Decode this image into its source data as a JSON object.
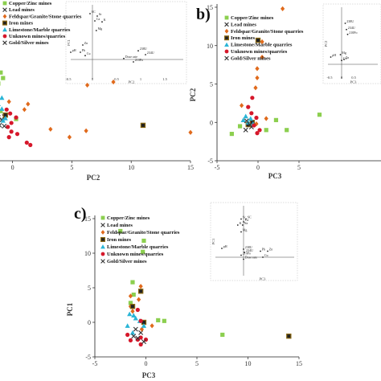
{
  "colors": {
    "copper_zinc": "#8ccf4f",
    "lead": "#333333",
    "feldspar": "#e06a1c",
    "iron": "#8b6914",
    "limestone": "#2ab5d6",
    "unknown": "#d6182b",
    "gold_silver": "#333333",
    "axis": "#222222"
  },
  "chart_data": [
    {
      "type": "scatter",
      "panel_label": "",
      "xlabel": "PC2",
      "ylabel": "",
      "xlim": [
        -1.6,
        15
      ],
      "ylim": [
        -5,
        15
      ],
      "xticks": [
        0,
        5,
        10,
        15
      ],
      "yticks": [],
      "legend_position": "top-left",
      "series": [
        {
          "name": "Copper/Zinc mines",
          "marker": "square",
          "color": "#8ccf4f",
          "points": [
            [
              -1.5,
              7.5
            ],
            [
              -1.3,
              6.8
            ],
            [
              -1.0,
              6.2
            ],
            [
              -0.8,
              5.5
            ],
            [
              -1.2,
              4.8
            ],
            [
              -1.4,
              2.2
            ],
            [
              -1.0,
              1.3
            ],
            [
              0.3,
              0.3
            ]
          ]
        },
        {
          "name": "Lead mines",
          "marker": "x",
          "color": "#333333",
          "points": [
            [
              -1.2,
              0.5
            ],
            [
              -0.9,
              0.2
            ],
            [
              -0.7,
              0.6
            ]
          ]
        },
        {
          "name": "Feldspar/Granite/Stone quarries",
          "marker": "diamond",
          "color": "#e06a1c",
          "points": [
            [
              6.3,
              4.6
            ],
            [
              8.5,
              5.0
            ],
            [
              1.0,
              1.5
            ],
            [
              1.3,
              2.2
            ],
            [
              3.2,
              -1.0
            ],
            [
              6.2,
              -1.2
            ],
            [
              15.0,
              -1.4
            ],
            [
              4.8,
              -2.0
            ],
            [
              -0.3,
              2.5
            ]
          ]
        },
        {
          "name": "Iron mines",
          "marker": "square-outline",
          "color": "#8b6914",
          "points": [
            [
              11.0,
              -0.5
            ],
            [
              -0.6,
              0.8
            ],
            [
              -1.3,
              -0.8
            ]
          ]
        },
        {
          "name": "Limestone/Marble quarries",
          "marker": "triangle",
          "color": "#2ab5d6",
          "points": [
            [
              -1.4,
              3.5
            ],
            [
              -0.9,
              3.0
            ],
            [
              -1.2,
              2.2
            ],
            [
              -0.9,
              1.6
            ],
            [
              -1.3,
              1.0
            ],
            [
              -0.6,
              0.4
            ],
            [
              -1.2,
              -0.2
            ],
            [
              -0.8,
              0.1
            ],
            [
              -1.4,
              -1.0
            ]
          ]
        },
        {
          "name": "Unknown mines/quarries",
          "marker": "circle",
          "color": "#d6182b",
          "points": [
            [
              -0.5,
              1.5
            ],
            [
              -0.2,
              1.0
            ],
            [
              0.3,
              0.5
            ],
            [
              -0.1,
              -0.2
            ],
            [
              -0.4,
              -0.7
            ],
            [
              -0.1,
              -1.3
            ],
            [
              0.4,
              -1.6
            ],
            [
              1.2,
              -2.7
            ],
            [
              1.5,
              -3.0
            ],
            [
              -0.3,
              -2.0
            ]
          ]
        },
        {
          "name": "Gold/Silver mines",
          "marker": "x",
          "color": "#333333",
          "points": [
            [
              -1.1,
              -0.5
            ],
            [
              -0.7,
              -0.6
            ]
          ]
        }
      ],
      "inset": {
        "xlabel": "PC2",
        "ylabel": "PC1",
        "xticks": [
          "-0.5",
          "0",
          "0.5",
          "1",
          "1.5"
        ],
        "points": [
          {
            "label": "SC",
            "x": -0.05,
            "y": 0.95
          },
          {
            "label": "Sr",
            "x": 0.1,
            "y": 0.9
          },
          {
            "label": "Ca",
            "x": 0.05,
            "y": 0.8
          },
          {
            "label": "K",
            "x": 0.2,
            "y": 0.78
          },
          {
            "label": "Mg",
            "x": 0.08,
            "y": 0.6
          },
          {
            "label": "Zn",
            "x": -0.2,
            "y": 0.3
          },
          {
            "label": "Pb",
            "x": -0.25,
            "y": 0.15
          },
          {
            "label": "pH",
            "x": -0.45,
            "y": 0.15
          },
          {
            "label": "Cu",
            "x": -0.15,
            "y": 0.08
          },
          {
            "label": "238U",
            "x": 0.95,
            "y": 0.18
          },
          {
            "label": "234U",
            "x": 1.1,
            "y": 0.1
          },
          {
            "label": "Dose rate",
            "x": 0.65,
            "y": 0.02
          },
          {
            "label": "210Po",
            "x": 0.85,
            "y": -0.05
          }
        ]
      }
    },
    {
      "type": "scatter",
      "panel_label": "b)",
      "xlabel": "PC3",
      "ylabel": "PC2",
      "xlim": [
        -5,
        15
      ],
      "ylim": [
        -5,
        15
      ],
      "xticks": [
        -5,
        0,
        5
      ],
      "yticks": [
        -5,
        0,
        5,
        10,
        15
      ],
      "legend_position": "top-left",
      "series": [
        {
          "name": "Copper/Zinc mines",
          "marker": "square",
          "color": "#8ccf4f",
          "points": [
            [
              -3.2,
              -1.5
            ],
            [
              -2.2,
              -0.5
            ],
            [
              1.0,
              -1.0
            ],
            [
              2.2,
              0.3
            ],
            [
              3.5,
              -1.0
            ],
            [
              7.5,
              1.0
            ]
          ]
        },
        {
          "name": "Lead mines",
          "marker": "x",
          "color": "#333333",
          "points": [
            [
              -1.5,
              -1.0
            ],
            [
              -0.8,
              -0.6
            ]
          ]
        },
        {
          "name": "Feldspar/Granite/Stone quarries",
          "marker": "diamond",
          "color": "#e06a1c",
          "points": [
            [
              3.0,
              14.8
            ],
            [
              0.5,
              10.5
            ],
            [
              0.5,
              8.5
            ],
            [
              -0.1,
              7.0
            ],
            [
              -0.1,
              5.8
            ],
            [
              -0.3,
              4.5
            ],
            [
              -2.0,
              2.2
            ],
            [
              1.0,
              0.5
            ],
            [
              -0.2,
              -0.2
            ]
          ]
        },
        {
          "name": "Iron mines",
          "marker": "square-outline",
          "color": "#8b6914",
          "points": [
            [
              0.0,
              10.7
            ],
            [
              -1.2,
              -0.3
            ],
            [
              -0.7,
              0.0
            ]
          ]
        },
        {
          "name": "Limestone/Marble quarries",
          "marker": "triangle",
          "color": "#2ab5d6",
          "points": [
            [
              -1.8,
              0.3
            ],
            [
              -1.5,
              0.8
            ],
            [
              -1.2,
              0.0
            ],
            [
              -0.9,
              0.5
            ],
            [
              -0.6,
              -0.2
            ]
          ]
        },
        {
          "name": "Unknown mines/quarries",
          "marker": "circle",
          "color": "#d6182b",
          "points": [
            [
              -0.7,
              3.2
            ],
            [
              -1.2,
              2.0
            ],
            [
              -0.8,
              1.2
            ],
            [
              -0.2,
              0.6
            ],
            [
              -0.5,
              -0.4
            ],
            [
              0.2,
              -1.0
            ],
            [
              -0.1,
              -1.4
            ]
          ]
        },
        {
          "name": "Gold/Silver mines",
          "marker": "x",
          "color": "#333333",
          "points": [
            [
              -1.0,
              -0.3
            ],
            [
              -1.4,
              0.2
            ]
          ]
        }
      ],
      "inset": {
        "xlabel": "PC3",
        "ylabel": "PC2",
        "xticks": [
          "-0.5",
          "0",
          "0.5"
        ],
        "points": [
          {
            "label": "238U",
            "x": 0.15,
            "y": 0.85
          },
          {
            "label": "234U",
            "x": 0.2,
            "y": 0.72
          },
          {
            "label": "210Po",
            "x": 0.25,
            "y": 0.62
          },
          {
            "label": "pH",
            "x": -0.45,
            "y": 0.15
          },
          {
            "label": "Mg",
            "x": -0.05,
            "y": 0.2
          },
          {
            "label": "Cu",
            "x": 0.0,
            "y": 0.08
          },
          {
            "label": "Zn",
            "x": 0.1,
            "y": 0.1
          }
        ]
      }
    },
    {
      "type": "scatter",
      "panel_label": "c)",
      "xlabel": "PC3",
      "ylabel": "PC1",
      "xlim": [
        -5,
        15
      ],
      "ylim": [
        -5,
        15
      ],
      "xticks": [
        -5,
        0,
        5,
        10,
        15
      ],
      "yticks": [
        -5,
        0,
        5,
        10,
        15
      ],
      "legend_position": "top-left",
      "series": [
        {
          "name": "Copper/Zinc mines",
          "marker": "square",
          "color": "#8ccf4f",
          "points": [
            [
              -2.5,
              13.2
            ],
            [
              -0.2,
              11.8
            ],
            [
              -0.3,
              10.2
            ],
            [
              -1.3,
              5.8
            ],
            [
              -1.2,
              4.0
            ],
            [
              -1.5,
              2.8
            ],
            [
              1.2,
              0.3
            ],
            [
              1.8,
              0.2
            ],
            [
              7.5,
              -1.8
            ]
          ]
        },
        {
          "name": "Lead mines",
          "marker": "x",
          "color": "#333333",
          "points": [
            [
              -1.0,
              -1.0
            ],
            [
              -0.5,
              -1.5
            ]
          ]
        },
        {
          "name": "Feldspar/Granite/Stone quarries",
          "marker": "diamond",
          "color": "#e06a1c",
          "points": [
            [
              -0.5,
              5.2
            ],
            [
              -1.5,
              3.8
            ],
            [
              -0.7,
              3.3
            ],
            [
              -1.5,
              2.3
            ],
            [
              -1.3,
              1.6
            ],
            [
              -0.4,
              -1.0
            ],
            [
              0.6,
              -0.5
            ]
          ]
        },
        {
          "name": "Iron mines",
          "marker": "square-outline",
          "color": "#8b6914",
          "points": [
            [
              -0.5,
              4.5
            ],
            [
              -1.3,
              2.3
            ],
            [
              -0.2,
              0.0
            ],
            [
              14.0,
              -2.0
            ]
          ]
        },
        {
          "name": "Limestone/Marble quarries",
          "marker": "triangle",
          "color": "#2ab5d6",
          "points": [
            [
              -1.6,
              1.2
            ],
            [
              -1.2,
              1.0
            ],
            [
              -1.0,
              0.6
            ],
            [
              -0.6,
              0.2
            ],
            [
              -1.8,
              -0.5
            ],
            [
              -1.3,
              -1.5
            ],
            [
              -0.2,
              -0.5
            ]
          ]
        },
        {
          "name": "Unknown mines/quarries",
          "marker": "circle",
          "color": "#d6182b",
          "points": [
            [
              -0.8,
              1.8
            ],
            [
              -0.5,
              0.2
            ],
            [
              -1.8,
              -1.8
            ],
            [
              -0.5,
              -2.2
            ],
            [
              0.0,
              -2.5
            ],
            [
              -0.5,
              -3.2
            ],
            [
              -1.5,
              -2.6
            ],
            [
              -0.8,
              -2.5
            ]
          ]
        },
        {
          "name": "Gold/Silver mines",
          "marker": "x",
          "color": "#333333",
          "points": [
            [
              -1.2,
              -2.0
            ],
            [
              -0.8,
              -2.3
            ],
            [
              -0.2,
              -2.8
            ]
          ]
        }
      ],
      "inset": {
        "xlabel": "PC3",
        "ylabel": "PC1",
        "xticks": [],
        "points": [
          {
            "label": "Sr",
            "x": -0.05,
            "y": 0.95
          },
          {
            "label": "SC",
            "x": 0.05,
            "y": 0.95
          },
          {
            "label": "Ca",
            "x": 0.0,
            "y": 0.88
          },
          {
            "label": "K",
            "x": -0.12,
            "y": 0.8
          },
          {
            "label": "Na",
            "x": -0.02,
            "y": 0.8
          },
          {
            "label": "Mg",
            "x": -0.05,
            "y": 0.63
          },
          {
            "label": "pH",
            "x": -0.45,
            "y": 0.22
          },
          {
            "label": "238U",
            "x": 0.0,
            "y": 0.2
          },
          {
            "label": "234U",
            "x": 0.02,
            "y": 0.12
          },
          {
            "label": "210Po",
            "x": -0.05,
            "y": 0.05
          },
          {
            "label": "Dose rate",
            "x": 0.0,
            "y": -0.05
          },
          {
            "label": "Pb",
            "x": 0.35,
            "y": 0.15
          },
          {
            "label": "Zn",
            "x": 0.5,
            "y": 0.15
          },
          {
            "label": "Cu",
            "x": 0.4,
            "y": 0.0
          }
        ]
      }
    }
  ]
}
